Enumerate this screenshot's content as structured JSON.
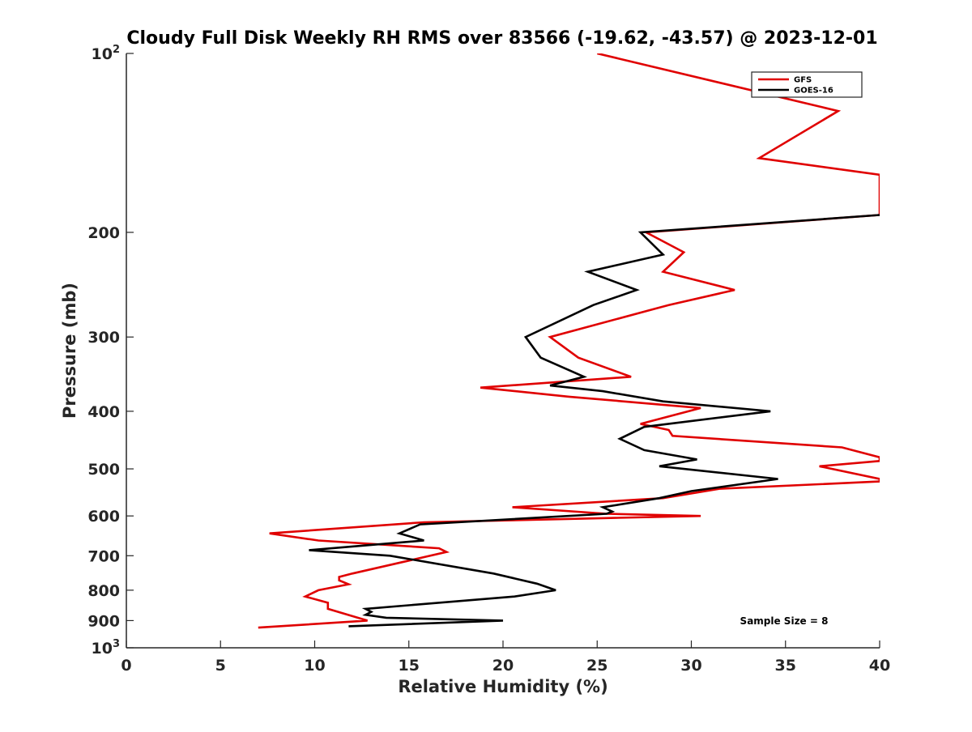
{
  "chart_data": {
    "type": "line",
    "title": "Cloudy Full Disk Weekly RH RMS over 83566 (-19.62, -43.57) @ 2023-12-01",
    "xlabel": "Relative Humidity (%)",
    "ylabel": "Pressure (mb)",
    "xlim": [
      0,
      40
    ],
    "ylim": [
      100,
      1000
    ],
    "y_scale": "log",
    "y_inverted": true,
    "xticks": [
      0,
      5,
      10,
      15,
      20,
      25,
      30,
      35,
      40
    ],
    "xtick_labels": [
      "0",
      "5",
      "10",
      "15",
      "20",
      "25",
      "30",
      "35",
      "40"
    ],
    "yticks": [
      200,
      300,
      400,
      500,
      600,
      700,
      800,
      900
    ],
    "ytick_labels": [
      "200",
      "300",
      "400",
      "500",
      "600",
      "700",
      "800",
      "900"
    ],
    "y_exp_ticks": [
      {
        "value": 100,
        "base": "10",
        "exp": "2"
      },
      {
        "value": 1000,
        "base": "10",
        "exp": "3"
      }
    ],
    "grid": false,
    "legend_position": "top-right",
    "annotation": "Sample Size = 8",
    "series": [
      {
        "name": "GFS",
        "color": "#e00000",
        "points": [
          [
            25.0,
            100
          ],
          [
            37.8,
            125
          ],
          [
            33.6,
            150
          ],
          [
            40.0,
            160
          ],
          [
            40.0,
            187
          ],
          [
            27.6,
            200
          ],
          [
            29.6,
            216
          ],
          [
            28.5,
            233
          ],
          [
            32.3,
            250
          ],
          [
            28.8,
            265
          ],
          [
            22.5,
            300
          ],
          [
            24.0,
            325
          ],
          [
            26.8,
            350
          ],
          [
            18.8,
            365
          ],
          [
            23.5,
            378
          ],
          [
            30.5,
            395
          ],
          [
            27.3,
            420
          ],
          [
            28.8,
            430
          ],
          [
            29.0,
            440
          ],
          [
            38.0,
            460
          ],
          [
            40.0,
            478
          ],
          [
            40.0,
            485
          ],
          [
            36.8,
            495
          ],
          [
            40.0,
            520
          ],
          [
            40.0,
            525
          ],
          [
            31.5,
            540
          ],
          [
            28.5,
            560
          ],
          [
            20.5,
            580
          ],
          [
            25.5,
            595
          ],
          [
            30.5,
            600
          ],
          [
            25.5,
            605
          ],
          [
            15.8,
            615
          ],
          [
            7.6,
            642
          ],
          [
            10.2,
            660
          ],
          [
            16.6,
            680
          ],
          [
            17.0,
            690
          ],
          [
            12.0,
            750
          ],
          [
            11.3,
            760
          ],
          [
            11.3,
            770
          ],
          [
            11.8,
            782
          ],
          [
            10.2,
            800
          ],
          [
            9.5,
            820
          ],
          [
            10.7,
            840
          ],
          [
            10.7,
            860
          ],
          [
            12.8,
            900
          ],
          [
            7.0,
            925
          ]
        ]
      },
      {
        "name": "GOES-16",
        "color": "#000000",
        "points": [
          [
            40.0,
            187
          ],
          [
            27.3,
            200
          ],
          [
            28.5,
            218
          ],
          [
            24.5,
            233
          ],
          [
            27.1,
            250
          ],
          [
            24.8,
            265
          ],
          [
            21.2,
            300
          ],
          [
            22.0,
            325
          ],
          [
            24.3,
            350
          ],
          [
            22.5,
            362
          ],
          [
            25.3,
            370
          ],
          [
            28.5,
            385
          ],
          [
            34.2,
            400
          ],
          [
            27.5,
            425
          ],
          [
            26.2,
            445
          ],
          [
            27.5,
            465
          ],
          [
            30.3,
            482
          ],
          [
            28.3,
            495
          ],
          [
            34.6,
            520
          ],
          [
            30.0,
            545
          ],
          [
            28.3,
            560
          ],
          [
            25.3,
            580
          ],
          [
            25.8,
            590
          ],
          [
            25.5,
            595
          ],
          [
            15.6,
            620
          ],
          [
            14.5,
            642
          ],
          [
            15.8,
            660
          ],
          [
            9.7,
            685
          ],
          [
            14.0,
            700
          ],
          [
            19.5,
            750
          ],
          [
            21.8,
            780
          ],
          [
            22.8,
            800
          ],
          [
            20.6,
            820
          ],
          [
            12.7,
            860
          ],
          [
            13.0,
            870
          ],
          [
            12.7,
            880
          ],
          [
            13.8,
            890
          ],
          [
            20.0,
            900
          ],
          [
            11.8,
            920
          ]
        ]
      }
    ]
  }
}
